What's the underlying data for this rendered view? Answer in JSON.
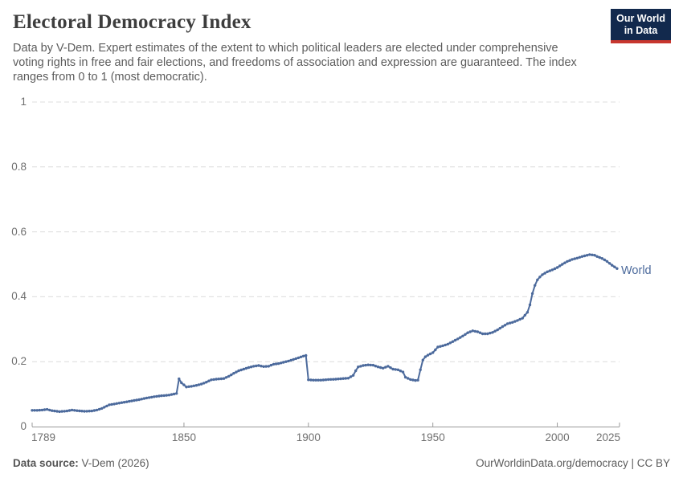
{
  "header": {
    "title": "Electoral Democracy Index",
    "subtitle": "Data by V-Dem. Expert estimates of the extent to which political leaders are elected under comprehensive voting rights in free and fair elections, and freedoms of association and expression are guaranteed. The index ranges from 0 to 1 (most democratic)."
  },
  "logo": {
    "line1": "Our World",
    "line2": "in Data",
    "bg_color": "#12294d",
    "bar_color": "#c7362e"
  },
  "chart_data": {
    "type": "line",
    "title": "Electoral Democracy Index",
    "xlabel": "",
    "ylabel": "",
    "xlim": [
      1789,
      2025
    ],
    "ylim": [
      0,
      1
    ],
    "xticks": [
      1789,
      1850,
      1900,
      1950,
      2000,
      2025
    ],
    "xtick_labels": [
      "1789",
      "1850",
      "1900",
      "1950",
      "2000",
      "2025"
    ],
    "yticks": [
      0,
      0.2,
      0.4,
      0.6,
      0.8,
      1
    ],
    "ytick_labels": [
      "0",
      "0.2",
      "0.4",
      "0.6",
      "0.8",
      "1"
    ],
    "grid": "horizontal-dashed",
    "legend_position": "end-of-line",
    "markers": true,
    "colors": {
      "line": "#4C6A9C",
      "grid": "#dcdcdc",
      "axis": "#9a9a9a",
      "tick_text": "#6f6f6f"
    },
    "series": [
      {
        "name": "World",
        "points": [
          [
            1789,
            0.05
          ],
          [
            1791,
            0.05
          ],
          [
            1793,
            0.051
          ],
          [
            1795,
            0.053
          ],
          [
            1797,
            0.049
          ],
          [
            1800,
            0.046
          ],
          [
            1803,
            0.048
          ],
          [
            1805,
            0.051
          ],
          [
            1807,
            0.049
          ],
          [
            1810,
            0.047
          ],
          [
            1813,
            0.048
          ],
          [
            1815,
            0.051
          ],
          [
            1817,
            0.056
          ],
          [
            1820,
            0.067
          ],
          [
            1823,
            0.071
          ],
          [
            1826,
            0.075
          ],
          [
            1829,
            0.079
          ],
          [
            1832,
            0.083
          ],
          [
            1835,
            0.088
          ],
          [
            1838,
            0.092
          ],
          [
            1841,
            0.095
          ],
          [
            1844,
            0.097
          ],
          [
            1847,
            0.102
          ],
          [
            1848,
            0.147
          ],
          [
            1849,
            0.135
          ],
          [
            1851,
            0.122
          ],
          [
            1853,
            0.124
          ],
          [
            1855,
            0.127
          ],
          [
            1857,
            0.131
          ],
          [
            1859,
            0.137
          ],
          [
            1861,
            0.144
          ],
          [
            1863,
            0.146
          ],
          [
            1866,
            0.148
          ],
          [
            1868,
            0.155
          ],
          [
            1870,
            0.164
          ],
          [
            1872,
            0.172
          ],
          [
            1874,
            0.177
          ],
          [
            1876,
            0.182
          ],
          [
            1878,
            0.186
          ],
          [
            1880,
            0.188
          ],
          [
            1882,
            0.185
          ],
          [
            1884,
            0.186
          ],
          [
            1886,
            0.192
          ],
          [
            1888,
            0.194
          ],
          [
            1890,
            0.198
          ],
          [
            1892,
            0.202
          ],
          [
            1894,
            0.207
          ],
          [
            1896,
            0.212
          ],
          [
            1898,
            0.217
          ],
          [
            1899,
            0.219
          ],
          [
            1900,
            0.144
          ],
          [
            1902,
            0.143
          ],
          [
            1905,
            0.143
          ],
          [
            1908,
            0.145
          ],
          [
            1911,
            0.146
          ],
          [
            1914,
            0.148
          ],
          [
            1916,
            0.149
          ],
          [
            1918,
            0.158
          ],
          [
            1919,
            0.172
          ],
          [
            1920,
            0.184
          ],
          [
            1922,
            0.188
          ],
          [
            1924,
            0.19
          ],
          [
            1926,
            0.189
          ],
          [
            1928,
            0.184
          ],
          [
            1930,
            0.18
          ],
          [
            1932,
            0.186
          ],
          [
            1934,
            0.177
          ],
          [
            1936,
            0.175
          ],
          [
            1938,
            0.168
          ],
          [
            1939,
            0.152
          ],
          [
            1941,
            0.145
          ],
          [
            1943,
            0.142
          ],
          [
            1944,
            0.143
          ],
          [
            1945,
            0.175
          ],
          [
            1946,
            0.205
          ],
          [
            1947,
            0.215
          ],
          [
            1948,
            0.22
          ],
          [
            1950,
            0.228
          ],
          [
            1952,
            0.245
          ],
          [
            1954,
            0.249
          ],
          [
            1956,
            0.254
          ],
          [
            1958,
            0.262
          ],
          [
            1960,
            0.27
          ],
          [
            1962,
            0.279
          ],
          [
            1964,
            0.289
          ],
          [
            1966,
            0.295
          ],
          [
            1968,
            0.292
          ],
          [
            1970,
            0.286
          ],
          [
            1972,
            0.286
          ],
          [
            1974,
            0.29
          ],
          [
            1976,
            0.298
          ],
          [
            1978,
            0.308
          ],
          [
            1980,
            0.317
          ],
          [
            1982,
            0.321
          ],
          [
            1984,
            0.327
          ],
          [
            1986,
            0.334
          ],
          [
            1988,
            0.352
          ],
          [
            1989,
            0.375
          ],
          [
            1990,
            0.41
          ],
          [
            1991,
            0.435
          ],
          [
            1992,
            0.452
          ],
          [
            1993,
            0.461
          ],
          [
            1994,
            0.468
          ],
          [
            1996,
            0.477
          ],
          [
            1998,
            0.483
          ],
          [
            2000,
            0.49
          ],
          [
            2002,
            0.5
          ],
          [
            2004,
            0.509
          ],
          [
            2006,
            0.515
          ],
          [
            2008,
            0.519
          ],
          [
            2010,
            0.524
          ],
          [
            2012,
            0.528
          ],
          [
            2013,
            0.53
          ],
          [
            2015,
            0.528
          ],
          [
            2016,
            0.524
          ],
          [
            2018,
            0.518
          ],
          [
            2020,
            0.509
          ],
          [
            2022,
            0.497
          ],
          [
            2024,
            0.487
          ]
        ]
      }
    ]
  },
  "footer": {
    "source_label": "Data source:",
    "source_value": "V-Dem (2026)",
    "attribution": "OurWorldinData.org/democracy | CC BY"
  }
}
